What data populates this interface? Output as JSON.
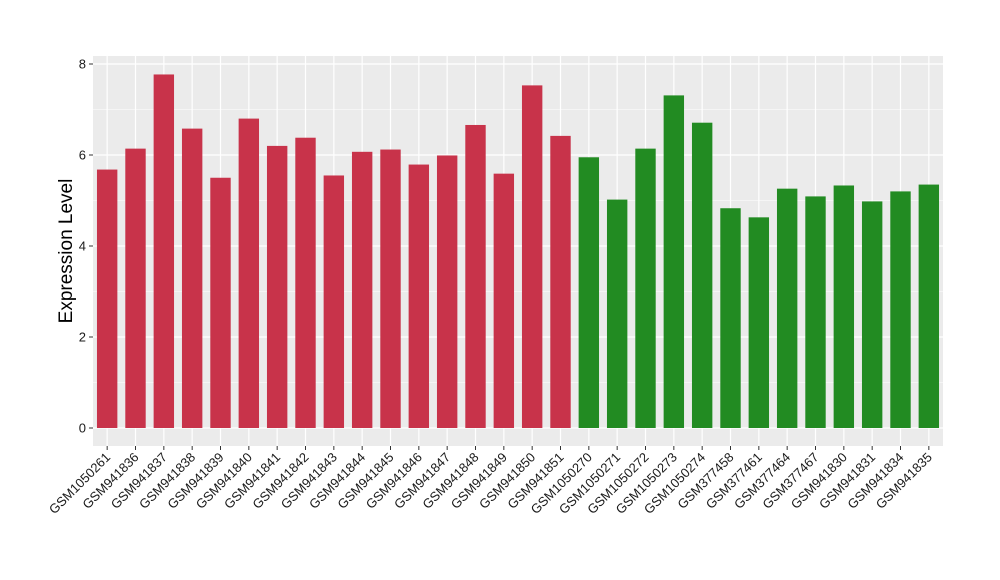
{
  "chart_data": {
    "type": "bar",
    "title": "",
    "xlabel": "",
    "ylabel": "Expression Level",
    "ylim": [
      0,
      8.2
    ],
    "yticks": [
      0,
      2,
      4,
      6,
      8
    ],
    "grid": true,
    "legend": "none",
    "categories": [
      "GSM1050261",
      "GSM941836",
      "GSM941837",
      "GSM941838",
      "GSM941839",
      "GSM941840",
      "GSM941841",
      "GSM941842",
      "GSM941843",
      "GSM941844",
      "GSM941845",
      "GSM941846",
      "GSM941847",
      "GSM941848",
      "GSM941849",
      "GSM941850",
      "GSM941851",
      "GSM1050270",
      "GSM1050271",
      "GSM1050272",
      "GSM1050273",
      "GSM1050274",
      "GSM377458",
      "GSM377461",
      "GSM377464",
      "GSM377467",
      "GSM941830",
      "GSM941831",
      "GSM941834",
      "GSM941835"
    ],
    "values": [
      5.68,
      6.14,
      7.77,
      6.58,
      5.5,
      6.8,
      6.2,
      6.38,
      5.55,
      6.07,
      6.12,
      5.79,
      5.99,
      6.66,
      5.59,
      7.53,
      6.42,
      5.95,
      5.02,
      6.14,
      7.31,
      6.71,
      4.83,
      4.63,
      5.26,
      5.09,
      5.33,
      4.98,
      5.2,
      5.35
    ],
    "bar_colors": [
      "#c8334a",
      "#c8334a",
      "#c8334a",
      "#c8334a",
      "#c8334a",
      "#c8334a",
      "#c8334a",
      "#c8334a",
      "#c8334a",
      "#c8334a",
      "#c8334a",
      "#c8334a",
      "#c8334a",
      "#c8334a",
      "#c8334a",
      "#c8334a",
      "#c8334a",
      "#228b22",
      "#228b22",
      "#228b22",
      "#228b22",
      "#228b22",
      "#228b22",
      "#228b22",
      "#228b22",
      "#228b22",
      "#228b22",
      "#228b22",
      "#228b22",
      "#228b22"
    ],
    "panel_background": "#ebebeb",
    "gridline_color": "#ffffff"
  }
}
